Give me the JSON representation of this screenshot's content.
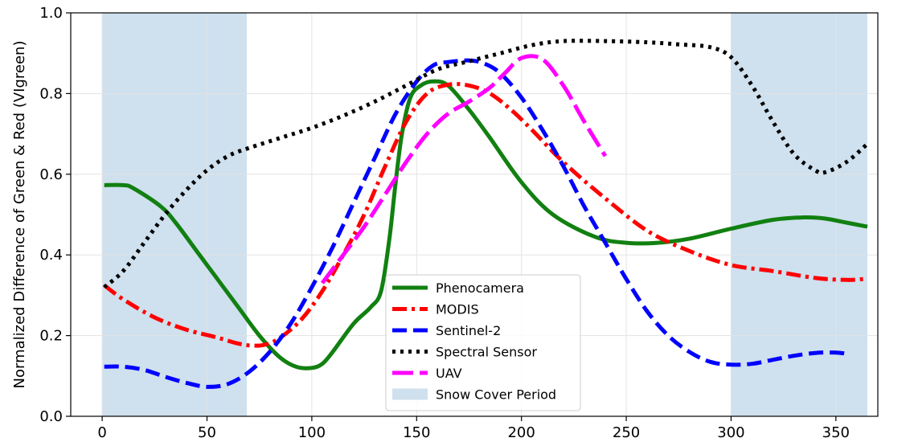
{
  "chart_data": {
    "type": "line",
    "title": "",
    "xlabel": "",
    "ylabel": "Normalized Difference of Green & Red (VIgreen)",
    "xlim": [
      -15,
      370
    ],
    "ylim": [
      0.0,
      1.0
    ],
    "xticks": [
      0,
      50,
      100,
      150,
      200,
      250,
      300,
      350
    ],
    "yticks": [
      0.0,
      0.2,
      0.4,
      0.6,
      0.8,
      1.0
    ],
    "xtick_labels": [
      "0",
      "50",
      "100",
      "150",
      "200",
      "250",
      "300",
      "350"
    ],
    "ytick_labels": [
      "0.0",
      "0.2",
      "0.4",
      "0.6",
      "0.8",
      "1.0"
    ],
    "grid": true,
    "legend_position": "bottom-center",
    "shaded_regions": [
      {
        "name": "Snow Cover Period",
        "x_start": 0,
        "x_end": 69,
        "color": "#cfe0ee"
      },
      {
        "name": "Snow Cover Period",
        "x_start": 300,
        "x_end": 365,
        "color": "#cfe0ee"
      }
    ],
    "series": [
      {
        "name": "Phenocamera",
        "color": "#118011",
        "style": "solid",
        "x": [
          1,
          10,
          15,
          28,
          35,
          45,
          55,
          65,
          75,
          85,
          93,
          100,
          105,
          110,
          120,
          128,
          133,
          137,
          140,
          143,
          147,
          152,
          158,
          165,
          175,
          185,
          200,
          215,
          235,
          250,
          265,
          280,
          300,
          320,
          335,
          345,
          355,
          365
        ],
        "y": [
          0.573,
          0.573,
          0.565,
          0.52,
          0.48,
          0.41,
          0.34,
          0.27,
          0.2,
          0.145,
          0.122,
          0.12,
          0.13,
          0.16,
          0.23,
          0.27,
          0.31,
          0.44,
          0.58,
          0.7,
          0.79,
          0.82,
          0.83,
          0.82,
          0.76,
          0.69,
          0.58,
          0.5,
          0.445,
          0.43,
          0.43,
          0.44,
          0.465,
          0.487,
          0.493,
          0.49,
          0.48,
          0.47
        ]
      },
      {
        "name": "MODIS",
        "color": "#ff0000",
        "style": "dashdot",
        "x": [
          1,
          10,
          25,
          40,
          55,
          65,
          72,
          78,
          85,
          95,
          105,
          115,
          125,
          135,
          145,
          155,
          165,
          175,
          185,
          195,
          205,
          220,
          240,
          260,
          280,
          300,
          320,
          340,
          355,
          363
        ],
        "y": [
          0.325,
          0.29,
          0.245,
          0.215,
          0.195,
          0.18,
          0.175,
          0.178,
          0.195,
          0.24,
          0.31,
          0.4,
          0.5,
          0.62,
          0.73,
          0.8,
          0.822,
          0.82,
          0.8,
          0.76,
          0.71,
          0.63,
          0.54,
          0.46,
          0.41,
          0.375,
          0.36,
          0.343,
          0.338,
          0.34
        ]
      },
      {
        "name": "Sentinel-2",
        "color": "#0000ff",
        "style": "dashed",
        "x": [
          1,
          10,
          20,
          30,
          40,
          50,
          60,
          70,
          80,
          90,
          100,
          110,
          120,
          130,
          140,
          150,
          158,
          165,
          175,
          182,
          190,
          200,
          210,
          220,
          230,
          240,
          250,
          260,
          270,
          280,
          290,
          300,
          310,
          320,
          330,
          340,
          350,
          355
        ],
        "y": [
          0.123,
          0.123,
          0.115,
          0.098,
          0.083,
          0.073,
          0.08,
          0.11,
          0.16,
          0.23,
          0.32,
          0.42,
          0.53,
          0.64,
          0.75,
          0.83,
          0.87,
          0.878,
          0.882,
          0.875,
          0.85,
          0.79,
          0.71,
          0.62,
          0.52,
          0.43,
          0.34,
          0.26,
          0.2,
          0.16,
          0.135,
          0.128,
          0.13,
          0.14,
          0.15,
          0.157,
          0.158,
          0.155
        ]
      },
      {
        "name": "Spectral Sensor",
        "color": "#000000",
        "style": "dotted",
        "x": [
          1,
          10,
          20,
          30,
          40,
          50,
          60,
          70,
          85,
          100,
          115,
          130,
          145,
          160,
          175,
          190,
          205,
          220,
          240,
          260,
          275,
          290,
          300,
          310,
          320,
          330,
          340,
          345,
          355,
          365
        ],
        "y": [
          0.32,
          0.36,
          0.43,
          0.5,
          0.56,
          0.61,
          0.645,
          0.665,
          0.69,
          0.715,
          0.745,
          0.78,
          0.82,
          0.86,
          0.88,
          0.9,
          0.92,
          0.93,
          0.93,
          0.927,
          0.922,
          0.915,
          0.89,
          0.82,
          0.73,
          0.65,
          0.61,
          0.605,
          0.63,
          0.675
        ]
      },
      {
        "name": "UAV",
        "color": "#ff00ff",
        "style": "longdash",
        "x": [
          105,
          115,
          125,
          135,
          145,
          155,
          165,
          175,
          185,
          192,
          200,
          210,
          220,
          230,
          240
        ],
        "y": [
          0.33,
          0.4,
          0.47,
          0.55,
          0.63,
          0.7,
          0.75,
          0.78,
          0.815,
          0.85,
          0.888,
          0.885,
          0.82,
          0.73,
          0.645
        ]
      }
    ],
    "legend": [
      {
        "label": "Phenocamera",
        "kind": "line",
        "color": "#118011",
        "style": "solid"
      },
      {
        "label": "MODIS",
        "kind": "line",
        "color": "#ff0000",
        "style": "dashdot"
      },
      {
        "label": "Sentinel-2",
        "kind": "line",
        "color": "#0000ff",
        "style": "dashed"
      },
      {
        "label": "Spectral Sensor",
        "kind": "line",
        "color": "#000000",
        "style": "dotted"
      },
      {
        "label": "UAV",
        "kind": "line",
        "color": "#ff00ff",
        "style": "longdash"
      },
      {
        "label": "Snow Cover Period",
        "kind": "patch",
        "color": "#cfe0ee"
      }
    ]
  }
}
